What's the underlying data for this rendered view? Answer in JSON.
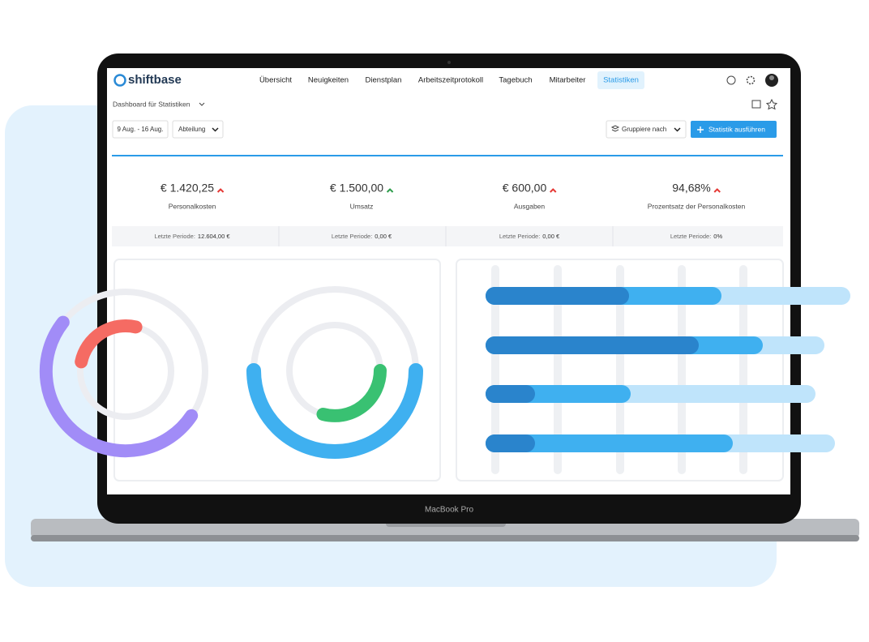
{
  "logo": "shiftbase",
  "nav": [
    "Übersicht",
    "Neuigkeiten",
    "Dienstplan",
    "Arbeitszeitprotokoll",
    "Tagebuch",
    "Mitarbeiter",
    "Statistiken"
  ],
  "toolbar": {
    "dashboard": "Dashboard für Statistiken",
    "date_range": "9 Aug. - 16 Aug.",
    "department": "Abteilung",
    "group": "Gruppiere nach",
    "run": "Statistik ausführen"
  },
  "kpis": [
    {
      "value": "€ 1.420,25",
      "label": "Personalkosten",
      "previous_label": "Letzte Periode:",
      "previous": "12.604,00 €"
    },
    {
      "value": "€ 1.500,00",
      "label": "Umsatz",
      "previous_label": "Letzte Periode:",
      "previous": "0,00 €"
    },
    {
      "value": "€ 600,00",
      "label": "Ausgaben",
      "previous_label": "Letzte Periode:",
      "previous": "0,00 €"
    },
    {
      "value": "94,68%",
      "label": "Prozentsatz der Personalkosten",
      "previous_label": "Letzte Periode:",
      "previous": "0%"
    }
  ],
  "laptop_label": "MacBook Pro"
}
